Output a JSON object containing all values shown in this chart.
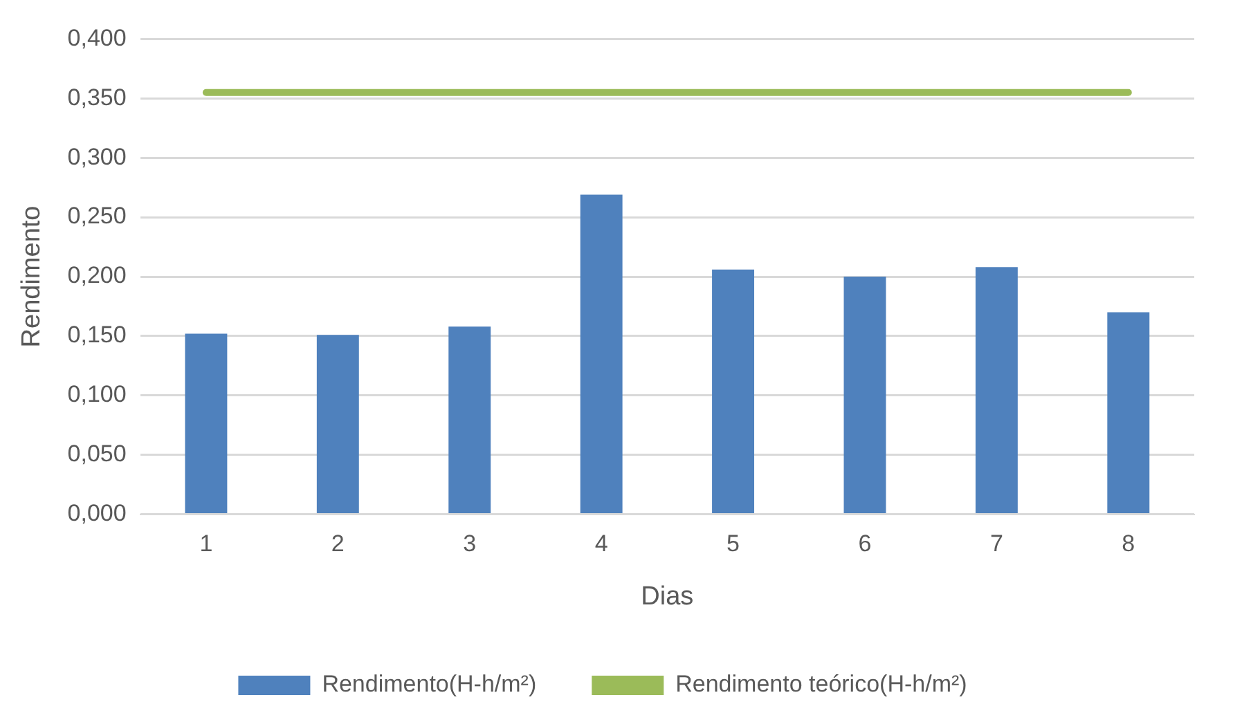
{
  "chart_data": {
    "type": "bar",
    "xlabel": "Dias",
    "ylabel": "Rendimento",
    "categories": [
      "1",
      "2",
      "3",
      "4",
      "5",
      "6",
      "7",
      "8"
    ],
    "series": [
      {
        "name": "Rendimento(H-h/m²)",
        "color": "#4f81bd",
        "values": [
          0.152,
          0.151,
          0.158,
          0.269,
          0.206,
          0.2,
          0.208,
          0.17
        ]
      },
      {
        "name": "Rendimento teórico(H-h/m²)",
        "type": "line",
        "color": "#9bbb59",
        "values": [
          0.355,
          0.355,
          0.355,
          0.355,
          0.355,
          0.355,
          0.355,
          0.355
        ]
      }
    ],
    "ylim": [
      0,
      0.4
    ],
    "yticks": [
      {
        "value": 0,
        "label": "0,000"
      },
      {
        "value": 0.05,
        "label": "0,050"
      },
      {
        "value": 0.1,
        "label": "0,100"
      },
      {
        "value": 0.15,
        "label": "0,150"
      },
      {
        "value": 0.2,
        "label": "0,200"
      },
      {
        "value": 0.25,
        "label": "0,250"
      },
      {
        "value": 0.3,
        "label": "0,300"
      },
      {
        "value": 0.35,
        "label": "0,350"
      },
      {
        "value": 0.4,
        "label": "0,400"
      }
    ],
    "grid": "y",
    "legend": "bottom",
    "marker": "none",
    "line_style": "solid"
  }
}
